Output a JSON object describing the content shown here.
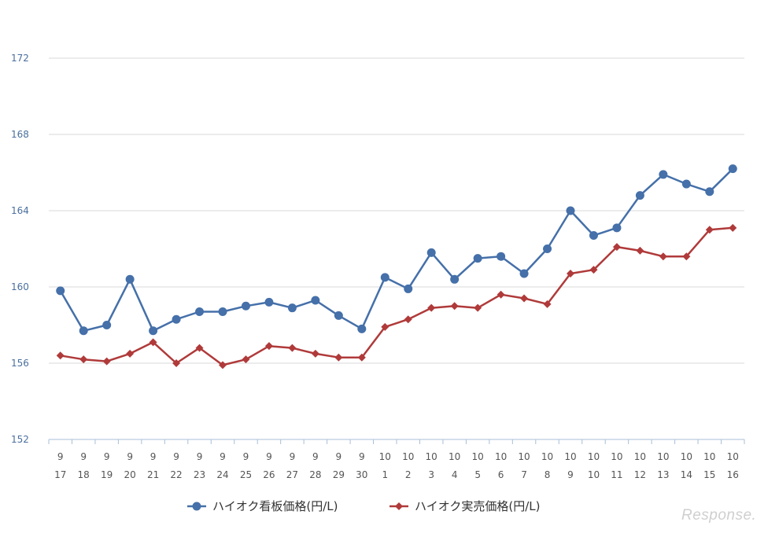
{
  "chart_data": {
    "type": "line",
    "categories": [
      [
        "9",
        "17"
      ],
      [
        "9",
        "18"
      ],
      [
        "9",
        "19"
      ],
      [
        "9",
        "20"
      ],
      [
        "9",
        "21"
      ],
      [
        "9",
        "22"
      ],
      [
        "9",
        "23"
      ],
      [
        "9",
        "24"
      ],
      [
        "9",
        "25"
      ],
      [
        "9",
        "26"
      ],
      [
        "9",
        "27"
      ],
      [
        "9",
        "28"
      ],
      [
        "9",
        "29"
      ],
      [
        "9",
        "30"
      ],
      [
        "10",
        "1"
      ],
      [
        "10",
        "2"
      ],
      [
        "10",
        "3"
      ],
      [
        "10",
        "4"
      ],
      [
        "10",
        "5"
      ],
      [
        "10",
        "6"
      ],
      [
        "10",
        "7"
      ],
      [
        "10",
        "8"
      ],
      [
        "10",
        "9"
      ],
      [
        "10",
        "10"
      ],
      [
        "10",
        "11"
      ],
      [
        "10",
        "12"
      ],
      [
        "10",
        "13"
      ],
      [
        "10",
        "14"
      ],
      [
        "10",
        "15"
      ],
      [
        "10",
        "16"
      ]
    ],
    "series": [
      {
        "name": "ハイオク看板価格(円/L)",
        "color": "#4570a9",
        "marker": "circle",
        "values": [
          159.8,
          157.7,
          158.0,
          160.4,
          157.7,
          158.3,
          158.7,
          158.7,
          159.0,
          159.2,
          158.9,
          159.3,
          158.5,
          157.8,
          160.5,
          159.9,
          161.8,
          160.4,
          161.5,
          161.6,
          160.7,
          162.0,
          164.0,
          162.7,
          163.1,
          164.8,
          165.9,
          165.4,
          165.0,
          166.2
        ]
      },
      {
        "name": "ハイオク実売価格(円/L)",
        "color": "#b03a3a",
        "marker": "diamond",
        "values": [
          156.4,
          156.2,
          156.1,
          156.5,
          157.1,
          156.0,
          156.8,
          155.9,
          156.2,
          156.9,
          156.8,
          156.5,
          156.3,
          156.3,
          157.9,
          158.3,
          158.9,
          159.0,
          158.9,
          159.6,
          159.4,
          159.1,
          160.7,
          160.9,
          162.1,
          161.9,
          161.6,
          161.6,
          163.0,
          163.1
        ]
      }
    ],
    "yticks": [
      152,
      156,
      160,
      164,
      168,
      172
    ],
    "ylim": [
      152,
      172
    ],
    "grid": true,
    "legend_position": "bottom"
  },
  "watermark": "Response."
}
